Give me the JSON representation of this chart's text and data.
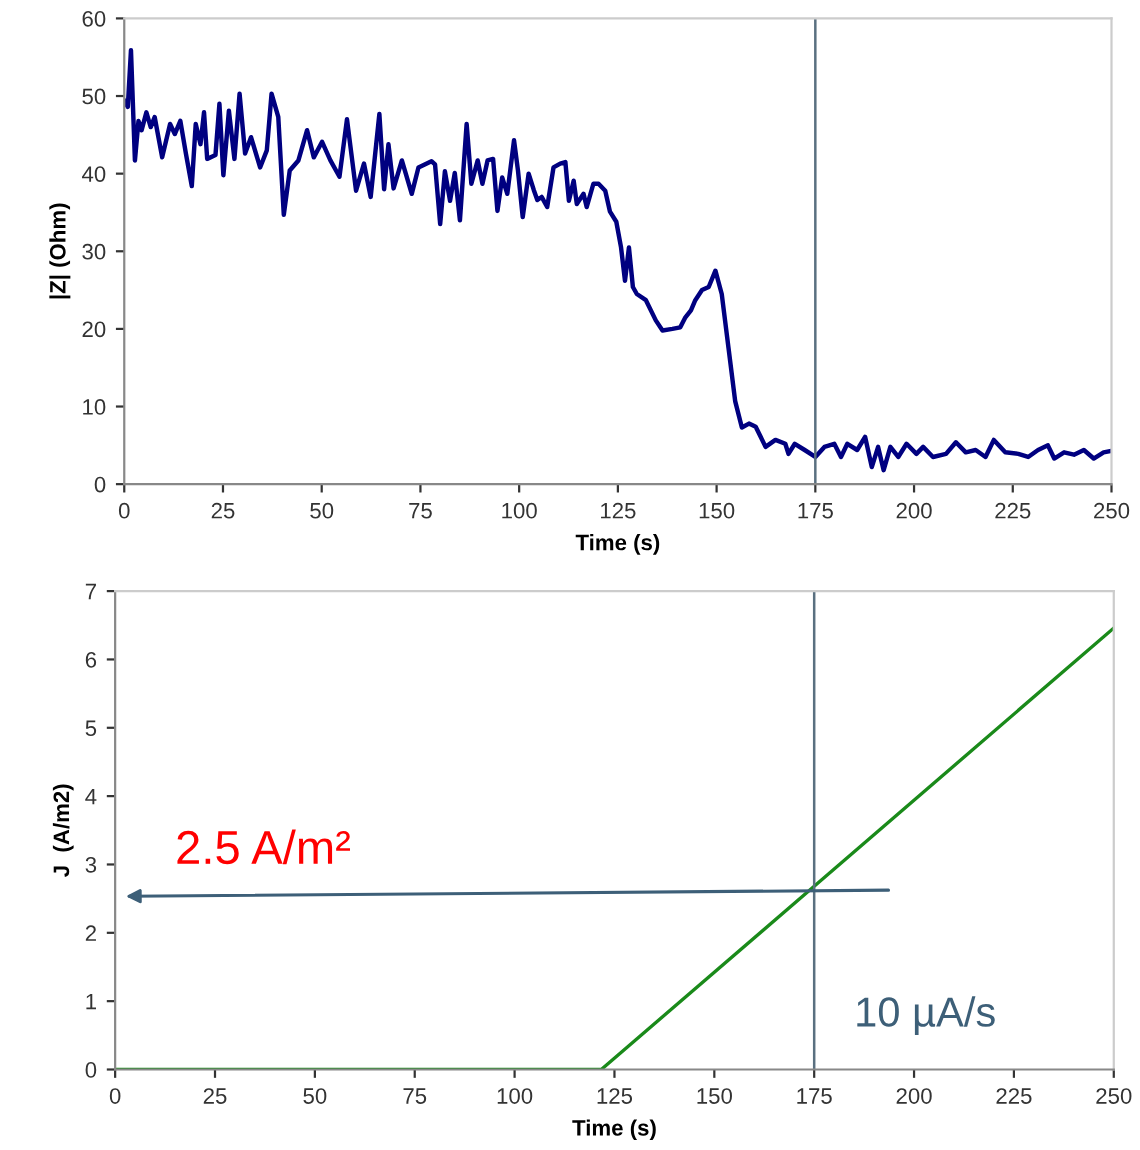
{
  "chart_data": [
    {
      "type": "line",
      "xlabel": "Time (s)",
      "ylabel": "|Z| (Ohm)",
      "xlim": [
        0,
        250
      ],
      "ylim": [
        0,
        60
      ],
      "xticks": [
        0,
        25,
        50,
        75,
        100,
        125,
        150,
        175,
        200,
        225,
        250
      ],
      "yticks": [
        0,
        10,
        20,
        30,
        40,
        50,
        60
      ],
      "grid": false,
      "legend": false,
      "series": [
        {
          "color": "#000080",
          "x": [
            0,
            0.9,
            1.7,
            2.7,
            3.6,
            4.4,
            5.6,
            6.7,
            7.7,
            9.6,
            11.6,
            12.8,
            14.2,
            15.6,
            17.1,
            18.1,
            19.3,
            20.2,
            21,
            23.1,
            24.1,
            25.1,
            26.5,
            27.9,
            29.2,
            30.6,
            32.1,
            34.4,
            36.1,
            37.3,
            39,
            40.4,
            41.9,
            44.1,
            46.3,
            48,
            50.1,
            52.2,
            54.5,
            56.4,
            58.7,
            60.7,
            62.4,
            64.6,
            65.8,
            66.9,
            68.2,
            70.3,
            72.8,
            74.5,
            77.8,
            78.7,
            80.0,
            81.2,
            82.5,
            83.7,
            85.0,
            86.7,
            87.9,
            89.5,
            90.7,
            92.0,
            93.4,
            94.5,
            95.7,
            97.0,
            98.7,
            99.7,
            100.9,
            102.4,
            103.7,
            104.6,
            105.7,
            107.1,
            108.7,
            110.4,
            111.7,
            112.6,
            113.8,
            114.6,
            116.3,
            117.1,
            118.8,
            120.1,
            121.8,
            123.0,
            124.6,
            125.8,
            126.8,
            127.8,
            128.8,
            129.8,
            132.1,
            134.6,
            136.3,
            138.8,
            140.8,
            142.1,
            143.5,
            144.6,
            146.3,
            148.0,
            149.7,
            151.3,
            153.0,
            154.7,
            156.4,
            158.2,
            159.9,
            162.4,
            164.9,
            167.4,
            168.2,
            169.8,
            172.3,
            175,
            177.3,
            179.8,
            181.5,
            183.1,
            185.6,
            187.6,
            189.3,
            190.9,
            192.3,
            194.0,
            196.0,
            198.1,
            200.6,
            202.3,
            204.8,
            208.1,
            210.6,
            213.1,
            215.6,
            218.1,
            220.2,
            223.1,
            226.4,
            228.9,
            231.4,
            233.9,
            235.5,
            238.0,
            240.5,
            243.0,
            245.5,
            248.0,
            250
          ],
          "values": [
            49.4,
            48.6,
            55.9,
            41.7,
            46.8,
            45.6,
            47.9,
            46.0,
            47.3,
            42.1,
            46.4,
            45.1,
            46.8,
            42.6,
            38.4,
            46.4,
            43.8,
            47.9,
            41.9,
            42.4,
            49.0,
            39.8,
            48.1,
            41.9,
            50.3,
            42.6,
            44.7,
            40.8,
            43.0,
            50.3,
            47.3,
            34.7,
            40.4,
            41.7,
            45.6,
            42.1,
            44.1,
            41.7,
            39.6,
            47.0,
            37.8,
            41.3,
            37.0,
            47.7,
            38.0,
            43.8,
            38.1,
            41.7,
            37.4,
            40.8,
            41.6,
            41.2,
            33.5,
            40.3,
            36.5,
            40.1,
            34.0,
            46.4,
            38.7,
            41.7,
            38.7,
            41.7,
            41.9,
            35.2,
            39.5,
            37.4,
            44.3,
            40.4,
            34.4,
            40.0,
            37.9,
            36.6,
            37.0,
            35.7,
            40.8,
            41.3,
            41.5,
            36.5,
            39.1,
            36.1,
            37.4,
            35.7,
            38.7,
            38.7,
            37.8,
            35.1,
            33.8,
            30.5,
            26.2,
            30.5,
            25.4,
            24.5,
            23.7,
            21.1,
            19.8,
            20.0,
            20.2,
            21.5,
            22.4,
            23.7,
            25.0,
            25.4,
            27.5,
            24.5,
            17.6,
            10.7,
            7.3,
            7.8,
            7.4,
            4.8,
            5.7,
            5.2,
            3.9,
            5.2,
            4.4,
            3.5,
            4.8,
            5.2,
            3.5,
            5.2,
            4.4,
            6.1,
            2.2,
            4.8,
            1.8,
            4.8,
            3.5,
            5.2,
            3.9,
            4.8,
            3.5,
            3.9,
            5.4,
            4.1,
            4.4,
            3.5,
            5.7,
            4.1,
            3.9,
            3.5,
            4.4,
            5.0,
            3.3,
            4.1,
            3.8,
            4.4,
            3.3,
            4.1,
            4.3
          ]
        }
      ],
      "ref_lines": [
        {
          "axis": "x",
          "value": 175,
          "color": "#5a7080"
        }
      ]
    },
    {
      "type": "line",
      "xlabel": "Time (s)",
      "ylabel": "J  (A/m2)",
      "xlim": [
        0,
        250
      ],
      "ylim": [
        0,
        7
      ],
      "xticks": [
        0,
        25,
        50,
        75,
        100,
        125,
        150,
        175,
        200,
        225,
        250
      ],
      "yticks": [
        0,
        1,
        2,
        3,
        4,
        5,
        6,
        7
      ],
      "grid": false,
      "legend": false,
      "series": [
        {
          "color": "#1a8a1a",
          "x": [
            0,
            121.7,
            175,
            250
          ],
          "values": [
            0,
            0,
            2.68,
            6.46
          ]
        }
      ],
      "ref_lines": [
        {
          "axis": "x",
          "value": 175,
          "color": "#5a7080"
        }
      ],
      "annotations": [
        "2.5 A/m²",
        "10 µA/s"
      ]
    }
  ]
}
